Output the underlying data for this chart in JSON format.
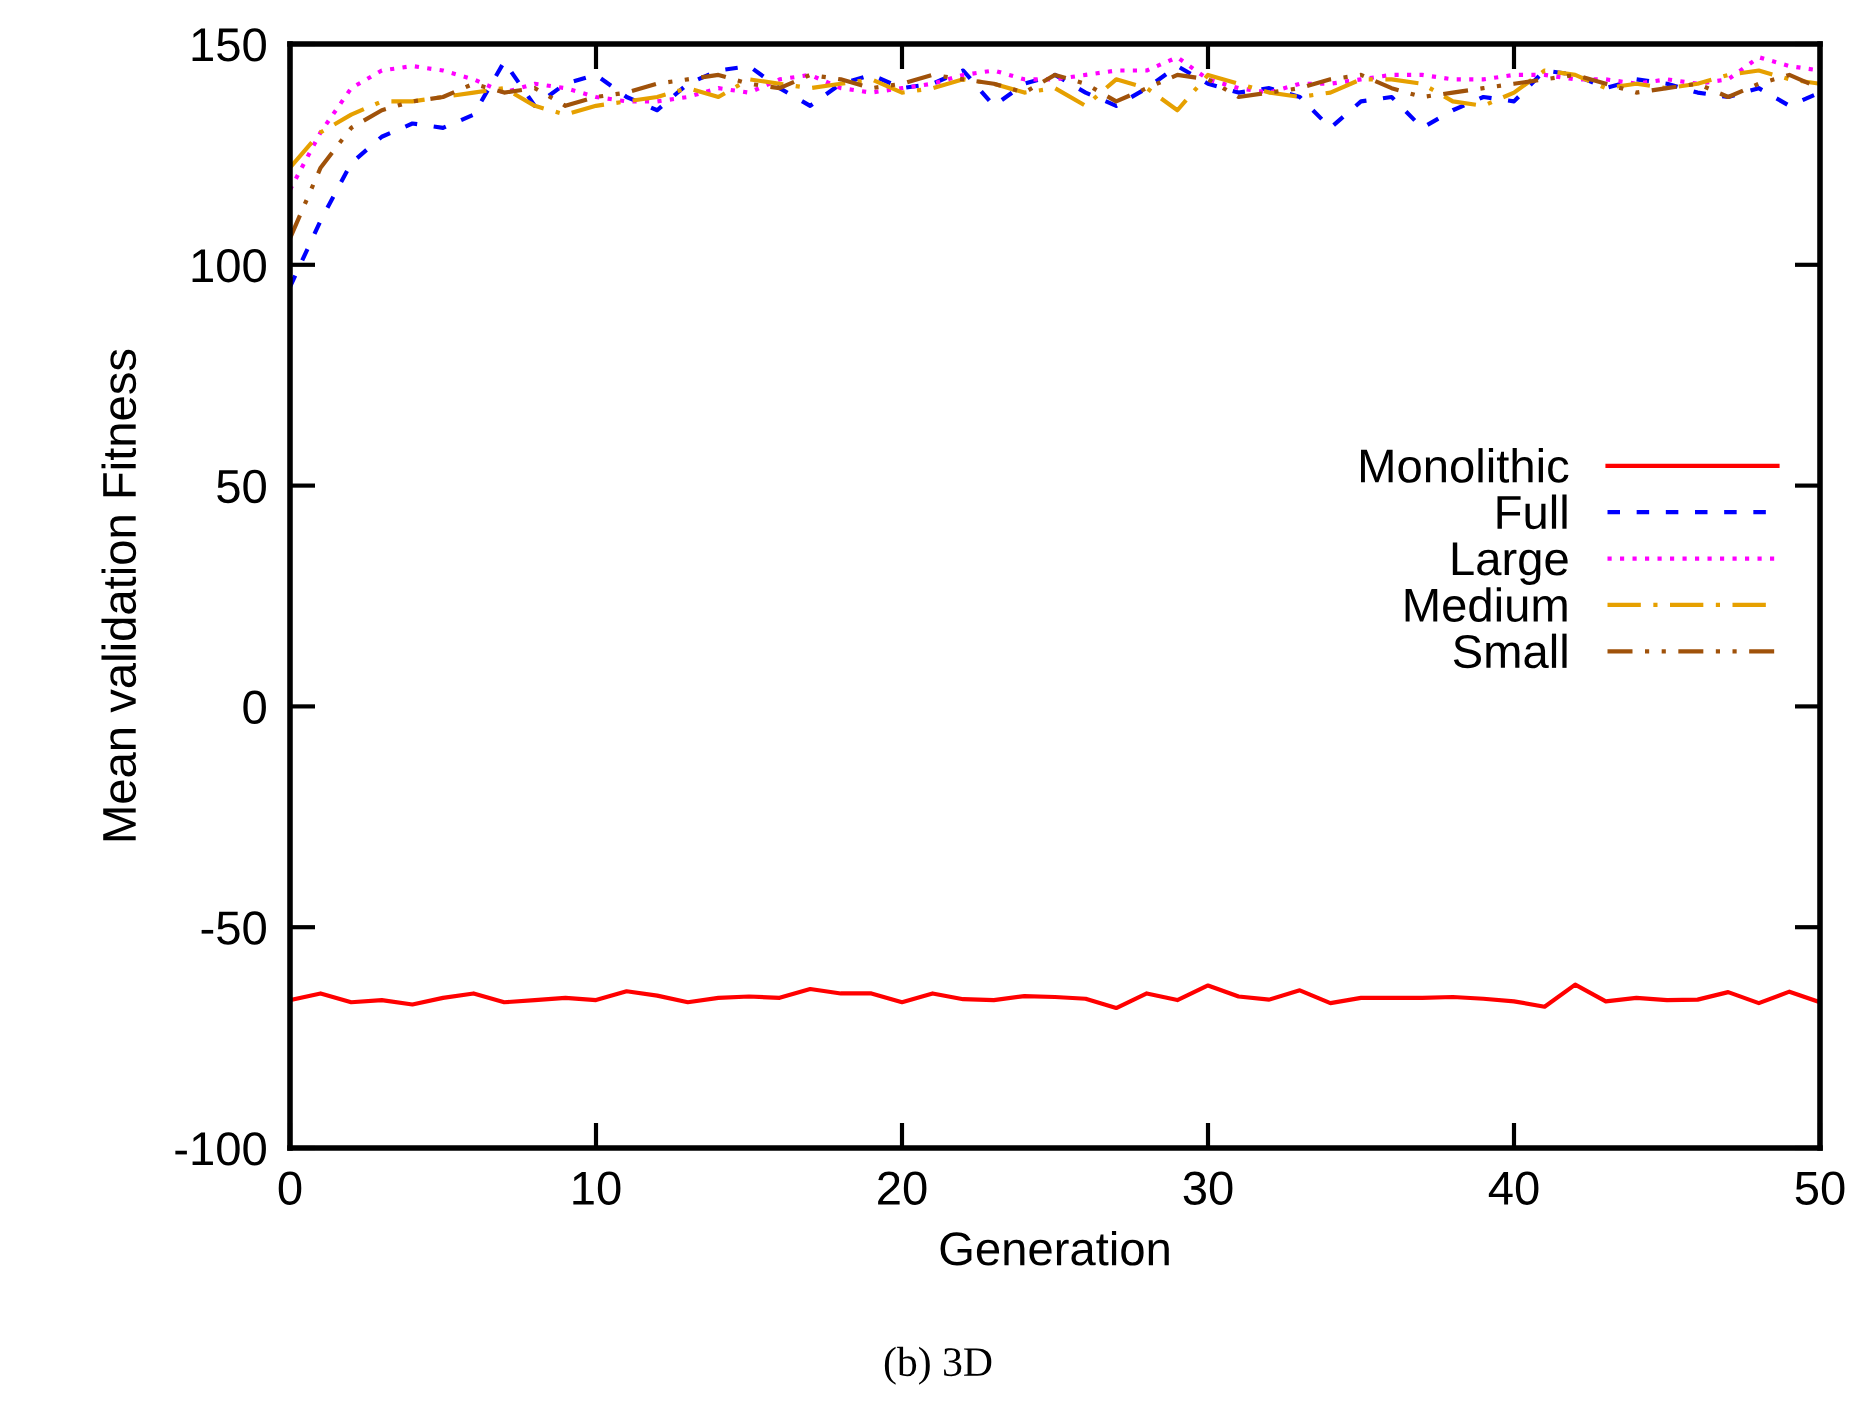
{
  "chart_data": {
    "type": "line",
    "xlabel": "Generation",
    "ylabel": "Mean validation Fitness",
    "annotations": [
      "(b) 3D"
    ],
    "x": [
      0,
      1,
      2,
      3,
      4,
      5,
      6,
      7,
      8,
      9,
      10,
      11,
      12,
      13,
      14,
      15,
      16,
      17,
      18,
      19,
      20,
      21,
      22,
      23,
      24,
      25,
      26,
      27,
      28,
      29,
      30,
      31,
      32,
      33,
      34,
      35,
      36,
      37,
      38,
      39,
      40,
      41,
      42,
      43,
      44,
      45,
      46,
      47,
      48,
      49,
      50
    ],
    "xlim": [
      0,
      50
    ],
    "xticks": [
      0,
      10,
      20,
      30,
      40,
      50
    ],
    "ylim": [
      -100,
      150
    ],
    "yticks": [
      -100,
      -50,
      0,
      50,
      100,
      150
    ],
    "grid": false,
    "legend": "right",
    "marker": "none",
    "series": [
      {
        "name": "Monolithic",
        "color": "#ff0000",
        "line_style": "solid",
        "values": [
          -66.5,
          -65,
          -67,
          -66.5,
          -67.5,
          -66,
          -65,
          -67,
          -66.5,
          -66,
          -66.5,
          -64.5,
          -65.5,
          -67,
          -66,
          -65.7,
          -66,
          -64,
          -65,
          -65,
          -67,
          -65,
          -66.3,
          -66.5,
          -65.6,
          -65.8,
          -66.2,
          -68.3,
          -65,
          -66.5,
          -63.2,
          -65.7,
          -66.4,
          -64.3,
          -67.2,
          -66,
          -66,
          -66,
          -65.8,
          -66.2,
          -66.8,
          -68,
          -63,
          -66.8,
          -66,
          -66.5,
          -66.4,
          -64.7,
          -67.2,
          -64.6,
          -67
        ]
      },
      {
        "name": "Full",
        "color": "#0000ff",
        "line_style": "dashed",
        "values": [
          95,
          110,
          123,
          129,
          132,
          131,
          134,
          146,
          136,
          141,
          143,
          138,
          135,
          141,
          144,
          145,
          140,
          136,
          141,
          143,
          140,
          141,
          144,
          136,
          141,
          143,
          139,
          136,
          140,
          145,
          141,
          139,
          140,
          138,
          131,
          137,
          138,
          131,
          135,
          138,
          137,
          144,
          143,
          140,
          142,
          141,
          139,
          138,
          140,
          136,
          139
        ]
      },
      {
        "name": "Large",
        "color": "#ff00ff",
        "line_style": "dotted",
        "values": [
          117,
          130,
          140,
          144,
          145,
          144,
          142,
          139,
          141,
          140,
          138,
          137,
          137,
          138,
          140,
          139,
          142,
          143,
          140,
          139,
          140,
          141,
          143,
          144,
          142,
          142,
          143,
          144,
          144,
          147,
          142,
          140,
          139,
          141,
          141,
          142,
          143,
          143,
          142,
          142,
          143,
          143,
          142,
          142,
          141,
          142,
          141,
          142,
          147,
          145,
          144
        ]
      },
      {
        "name": "Medium",
        "color": "#e6a000",
        "line_style": "dashdot",
        "values": [
          122,
          130,
          134,
          137,
          137,
          138,
          139,
          140,
          136,
          134,
          136,
          137,
          138,
          140,
          138,
          142,
          141,
          140,
          141,
          142,
          139,
          140,
          142,
          141,
          139,
          140,
          136,
          142,
          140,
          135,
          143,
          141,
          139,
          138,
          139,
          142,
          142,
          141,
          137,
          136,
          139,
          144,
          143,
          140,
          141,
          140,
          141,
          143,
          144,
          142,
          141
        ]
      },
      {
        "name": "Small",
        "color": "#a0520a",
        "line_style": "dashdotdot",
        "values": [
          106,
          122,
          131,
          135,
          137,
          138,
          141,
          139,
          140,
          136,
          138,
          139,
          141,
          142,
          143,
          141,
          140,
          143,
          142,
          140,
          141,
          143,
          142,
          141,
          139,
          143,
          141,
          137,
          140,
          143,
          142,
          138,
          139,
          140,
          142,
          143,
          140,
          138,
          139,
          140,
          141,
          142,
          143,
          141,
          139,
          140,
          141,
          138,
          141,
          143,
          140
        ]
      }
    ]
  }
}
